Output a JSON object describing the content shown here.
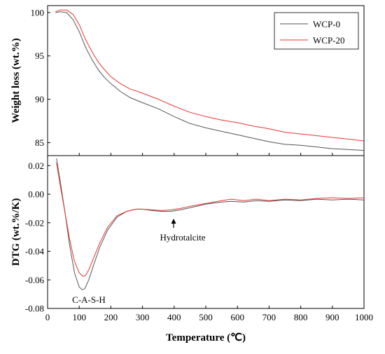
{
  "chart_data": [
    {
      "type": "line",
      "panel": "top",
      "ylabel": "Weight loss (wt.%)",
      "xlim": [
        0,
        1000
      ],
      "ylim": [
        83.5,
        100.8
      ],
      "yticks": [
        85,
        90,
        95,
        100
      ],
      "grid": false,
      "legend": {
        "placement": "top-right",
        "entries": [
          "WCP-0",
          "WCP-20"
        ]
      },
      "series": [
        {
          "name": "WCP-0",
          "color": "#555555",
          "x": [
            25,
            40,
            60,
            80,
            100,
            120,
            140,
            160,
            180,
            200,
            230,
            260,
            300,
            350,
            400,
            450,
            500,
            550,
            600,
            650,
            700,
            750,
            800,
            850,
            900,
            950,
            1000
          ],
          "y": [
            100.0,
            100.1,
            100.0,
            99.2,
            97.8,
            96.0,
            94.6,
            93.4,
            92.5,
            91.8,
            90.9,
            90.2,
            89.6,
            88.9,
            88.0,
            87.2,
            86.7,
            86.3,
            85.9,
            85.5,
            85.1,
            84.8,
            84.7,
            84.5,
            84.3,
            84.2,
            84.1
          ]
        },
        {
          "name": "WCP-20",
          "color": "#e8332f",
          "x": [
            25,
            40,
            60,
            80,
            100,
            120,
            140,
            160,
            180,
            200,
            230,
            260,
            300,
            350,
            400,
            450,
            500,
            550,
            600,
            650,
            700,
            750,
            800,
            850,
            900,
            950,
            1000
          ],
          "y": [
            100.1,
            100.3,
            100.3,
            99.8,
            98.6,
            96.9,
            95.5,
            94.3,
            93.4,
            92.6,
            91.8,
            91.2,
            90.7,
            90.0,
            89.2,
            88.5,
            88.0,
            87.6,
            87.3,
            86.9,
            86.6,
            86.2,
            86.0,
            85.8,
            85.6,
            85.4,
            85.2
          ]
        }
      ]
    },
    {
      "type": "line",
      "panel": "bottom",
      "xlabel": "Temperature (℃)",
      "ylabel": "DTG (wt.%/K)",
      "xlim": [
        0,
        1000
      ],
      "ylim": [
        -0.08,
        0.027
      ],
      "xticks": [
        0,
        100,
        200,
        300,
        400,
        500,
        600,
        700,
        800,
        900,
        1000
      ],
      "yticks": [
        -0.08,
        -0.06,
        -0.04,
        -0.02,
        0.0,
        0.02
      ],
      "ytick_labels": [
        "-0.08",
        "-0.06",
        "-0.04",
        "-0.02",
        "0.00",
        "0.02"
      ],
      "grid": false,
      "series": [
        {
          "name": "WCP-0",
          "color": "#555555",
          "x": [
            28,
            40,
            55,
            70,
            85,
            100,
            110,
            118,
            130,
            145,
            165,
            190,
            220,
            250,
            280,
            300,
            330,
            360,
            390,
            420,
            450,
            500,
            550,
            580,
            620,
            660,
            700,
            750,
            800,
            850,
            900,
            950,
            1000
          ],
          "y": [
            0.025,
            0.009,
            -0.013,
            -0.036,
            -0.055,
            -0.065,
            -0.067,
            -0.066,
            -0.06,
            -0.05,
            -0.037,
            -0.025,
            -0.016,
            -0.012,
            -0.0105,
            -0.0105,
            -0.0115,
            -0.012,
            -0.012,
            -0.011,
            -0.0095,
            -0.007,
            -0.0055,
            -0.005,
            -0.0055,
            -0.0045,
            -0.005,
            -0.004,
            -0.0045,
            -0.0035,
            -0.004,
            -0.0035,
            -0.004
          ]
        },
        {
          "name": "WCP-20",
          "color": "#e8332f",
          "x": [
            28,
            40,
            55,
            70,
            85,
            100,
            112,
            120,
            130,
            145,
            165,
            190,
            220,
            250,
            280,
            300,
            330,
            360,
            390,
            420,
            450,
            500,
            550,
            580,
            620,
            660,
            700,
            750,
            800,
            850,
            900,
            950,
            1000
          ],
          "y": [
            0.022,
            0.006,
            -0.013,
            -0.032,
            -0.047,
            -0.055,
            -0.0575,
            -0.057,
            -0.053,
            -0.045,
            -0.034,
            -0.023,
            -0.015,
            -0.012,
            -0.0105,
            -0.0105,
            -0.011,
            -0.0115,
            -0.011,
            -0.01,
            -0.0085,
            -0.0065,
            -0.0045,
            -0.0035,
            -0.0045,
            -0.0035,
            -0.0045,
            -0.0035,
            -0.004,
            -0.003,
            -0.0025,
            -0.003,
            -0.0025
          ]
        }
      ],
      "annotations": [
        {
          "text": "Hydrotalcite",
          "x": 400,
          "y": -0.0135,
          "arrow": true
        },
        {
          "text": "C-A-S-H",
          "x": 118,
          "y": -0.0725,
          "arrow": false
        }
      ]
    }
  ]
}
